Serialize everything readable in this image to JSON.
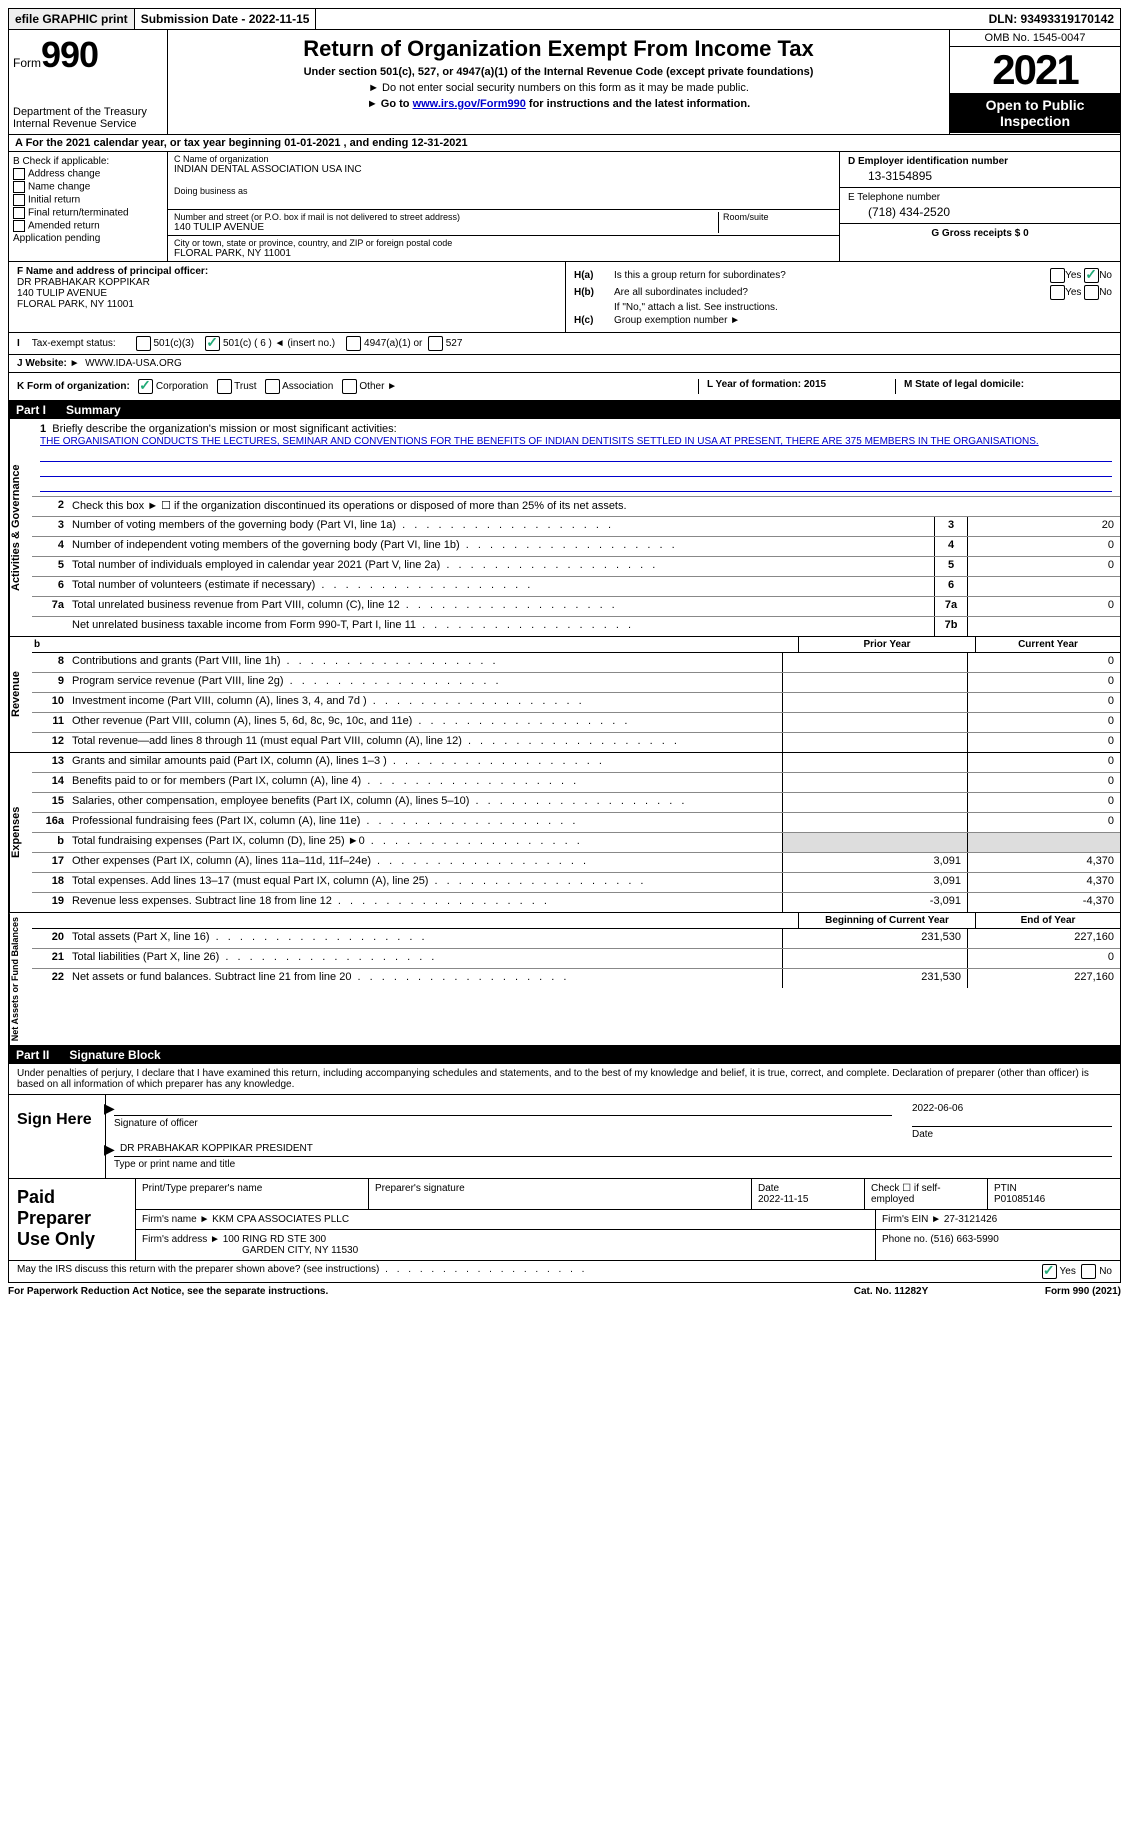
{
  "topbar": {
    "efile": "efile GRAPHIC print",
    "submission": "Submission Date - 2022-11-15",
    "dln": "DLN: 93493319170142"
  },
  "header": {
    "form_label": "Form",
    "form_num": "990",
    "dept": "Department of the Treasury",
    "irs": "Internal Revenue Service",
    "title": "Return of Organization Exempt From Income Tax",
    "subtitle": "Under section 501(c), 527, or 4947(a)(1) of the Internal Revenue Code (except private foundations)",
    "note1": "Do not enter social security numbers on this form as it may be made public.",
    "note2_pre": "Go to ",
    "note2_link": "www.irs.gov/Form990",
    "note2_post": " for instructions and the latest information.",
    "omb": "OMB No. 1545-0047",
    "year": "2021",
    "inspection": "Open to Public Inspection"
  },
  "row_a": "A  For the 2021 calendar year, or tax year beginning 01-01-2021    , and ending 12-31-2021",
  "col_b": {
    "title": "B Check if applicable:",
    "items": [
      "Address change",
      "Name change",
      "Initial return",
      "Final return/terminated",
      "Amended return",
      "Application pending"
    ]
  },
  "col_c": {
    "name_lbl": "C Name of organization",
    "name": "INDIAN DENTAL ASSOCIATION USA INC",
    "dba_lbl": "Doing business as",
    "street_lbl": "Number and street (or P.O. box if mail is not delivered to street address)",
    "room_lbl": "Room/suite",
    "street": "140 TULIP AVENUE",
    "city_lbl": "City or town, state or province, country, and ZIP or foreign postal code",
    "city": "FLORAL PARK, NY  11001"
  },
  "col_de": {
    "d_lbl": "D Employer identification number",
    "d_val": "13-3154895",
    "e_lbl": "E Telephone number",
    "e_val": "(718) 434-2520",
    "g_lbl": "G Gross receipts $ 0"
  },
  "section_f": {
    "lbl": "F Name and address of principal officer:",
    "name": "DR PRABHAKAR KOPPIKAR",
    "street": "140 TULIP AVENUE",
    "city": "FLORAL PARK, NY  11001"
  },
  "section_h": {
    "ha_lbl": "H(a)",
    "ha_text": "Is this a group return for subordinates?",
    "hb_lbl": "H(b)",
    "hb_text": "Are all subordinates included?",
    "hb_note": "If \"No,\" attach a list. See instructions.",
    "hc_lbl": "H(c)",
    "hc_text": "Group exemption number ►",
    "yes": "Yes",
    "no": "No"
  },
  "row_i": {
    "lbl": "I",
    "text": "Tax-exempt status:",
    "opts": [
      "501(c)(3)",
      "501(c) ( 6 ) ◄ (insert no.)",
      "4947(a)(1) or",
      "527"
    ]
  },
  "row_j": {
    "lbl": "J",
    "text": "Website: ►",
    "val": "WWW.IDA-USA.ORG"
  },
  "row_k": {
    "lbl": "K Form of organization:",
    "opts": [
      "Corporation",
      "Trust",
      "Association",
      "Other ►"
    ],
    "l": "L Year of formation: 2015",
    "m": "M State of legal domicile:"
  },
  "part1": {
    "num": "Part I",
    "title": "Summary"
  },
  "summary": {
    "line1_lbl": "1",
    "line1_text": "Briefly describe the organization's mission or most significant activities:",
    "line1_val": "THE ORGANISATION CONDUCTS THE LECTURES, SEMINAR AND CONVENTIONS FOR THE BENEFITS OF INDIAN DENTISITS SETTLED IN USA AT PRESENT, THERE ARE 375 MEMBERS IN THE ORGANISATIONS.",
    "line2_lbl": "2",
    "line2_text": "Check this box ► ☐ if the organization discontinued its operations or disposed of more than 25% of its net assets.",
    "lines": [
      {
        "n": "3",
        "d": "Number of voting members of the governing body (Part VI, line 1a)",
        "b": "3",
        "v": "20"
      },
      {
        "n": "4",
        "d": "Number of independent voting members of the governing body (Part VI, line 1b)",
        "b": "4",
        "v": "0"
      },
      {
        "n": "5",
        "d": "Total number of individuals employed in calendar year 2021 (Part V, line 2a)",
        "b": "5",
        "v": "0"
      },
      {
        "n": "6",
        "d": "Total number of volunteers (estimate if necessary)",
        "b": "6",
        "v": ""
      },
      {
        "n": "7a",
        "d": "Total unrelated business revenue from Part VIII, column (C), line 12",
        "b": "7a",
        "v": "0"
      },
      {
        "n": "",
        "d": "Net unrelated business taxable income from Form 990-T, Part I, line 11",
        "b": "7b",
        "v": ""
      }
    ],
    "hdr_prior": "Prior Year",
    "hdr_curr": "Current Year",
    "revenue": [
      {
        "n": "8",
        "d": "Contributions and grants (Part VIII, line 1h)",
        "p": "",
        "c": "0"
      },
      {
        "n": "9",
        "d": "Program service revenue (Part VIII, line 2g)",
        "p": "",
        "c": "0"
      },
      {
        "n": "10",
        "d": "Investment income (Part VIII, column (A), lines 3, 4, and 7d )",
        "p": "",
        "c": "0"
      },
      {
        "n": "11",
        "d": "Other revenue (Part VIII, column (A), lines 5, 6d, 8c, 9c, 10c, and 11e)",
        "p": "",
        "c": "0"
      },
      {
        "n": "12",
        "d": "Total revenue—add lines 8 through 11 (must equal Part VIII, column (A), line 12)",
        "p": "",
        "c": "0"
      }
    ],
    "expenses": [
      {
        "n": "13",
        "d": "Grants and similar amounts paid (Part IX, column (A), lines 1–3 )",
        "p": "",
        "c": "0"
      },
      {
        "n": "14",
        "d": "Benefits paid to or for members (Part IX, column (A), line 4)",
        "p": "",
        "c": "0"
      },
      {
        "n": "15",
        "d": "Salaries, other compensation, employee benefits (Part IX, column (A), lines 5–10)",
        "p": "",
        "c": "0"
      },
      {
        "n": "16a",
        "d": "Professional fundraising fees (Part IX, column (A), line 11e)",
        "p": "",
        "c": "0"
      },
      {
        "n": "b",
        "d": "Total fundraising expenses (Part IX, column (D), line 25) ►0",
        "p": "grey",
        "c": "grey"
      },
      {
        "n": "17",
        "d": "Other expenses (Part IX, column (A), lines 11a–11d, 11f–24e)",
        "p": "3,091",
        "c": "4,370"
      },
      {
        "n": "18",
        "d": "Total expenses. Add lines 13–17 (must equal Part IX, column (A), line 25)",
        "p": "3,091",
        "c": "4,370"
      },
      {
        "n": "19",
        "d": "Revenue less expenses. Subtract line 18 from line 12",
        "p": "-3,091",
        "c": "-4,370"
      }
    ],
    "hdr_beg": "Beginning of Current Year",
    "hdr_end": "End of Year",
    "netassets": [
      {
        "n": "20",
        "d": "Total assets (Part X, line 16)",
        "p": "231,530",
        "c": "227,160"
      },
      {
        "n": "21",
        "d": "Total liabilities (Part X, line 26)",
        "p": "",
        "c": "0"
      },
      {
        "n": "22",
        "d": "Net assets or fund balances. Subtract line 21 from line 20",
        "p": "231,530",
        "c": "227,160"
      }
    ],
    "vtab_act": "Activities & Governance",
    "vtab_rev": "Revenue",
    "vtab_exp": "Expenses",
    "vtab_net": "Net Assets or Fund Balances"
  },
  "part2": {
    "num": "Part II",
    "title": "Signature Block"
  },
  "sig": {
    "decl": "Under penalties of perjury, I declare that I have examined this return, including accompanying schedules and statements, and to the best of my knowledge and belief, it is true, correct, and complete. Declaration of preparer (other than officer) is based on all information of which preparer has any knowledge.",
    "sign_here": "Sign Here",
    "sig_officer": "Signature of officer",
    "date": "Date",
    "date_val": "2022-06-06",
    "name_title": "DR PRABHAKAR KOPPIKAR  PRESIDENT",
    "name_lbl": "Type or print name and title"
  },
  "paid": {
    "lbl": "Paid Preparer Use Only",
    "print_lbl": "Print/Type preparer's name",
    "sig_lbl": "Preparer's signature",
    "date_lbl": "Date",
    "date_val": "2022-11-15",
    "check_lbl": "Check ☐ if self-employed",
    "ptin_lbl": "PTIN",
    "ptin_val": "P01085146",
    "firm_name_lbl": "Firm's name    ►",
    "firm_name": "KKM CPA ASSOCIATES PLLC",
    "firm_ein_lbl": "Firm's EIN ►",
    "firm_ein": "27-3121426",
    "firm_addr_lbl": "Firm's address ►",
    "firm_addr1": "100 RING RD STE 300",
    "firm_addr2": "GARDEN CITY, NY  11530",
    "phone_lbl": "Phone no.",
    "phone_val": "(516) 663-5990"
  },
  "footer": {
    "discuss": "May the IRS discuss this return with the preparer shown above? (see instructions)",
    "yes": "Yes",
    "no": "No",
    "paperwork": "For Paperwork Reduction Act Notice, see the separate instructions.",
    "cat": "Cat. No. 11282Y",
    "form": "Form 990 (2021)"
  }
}
